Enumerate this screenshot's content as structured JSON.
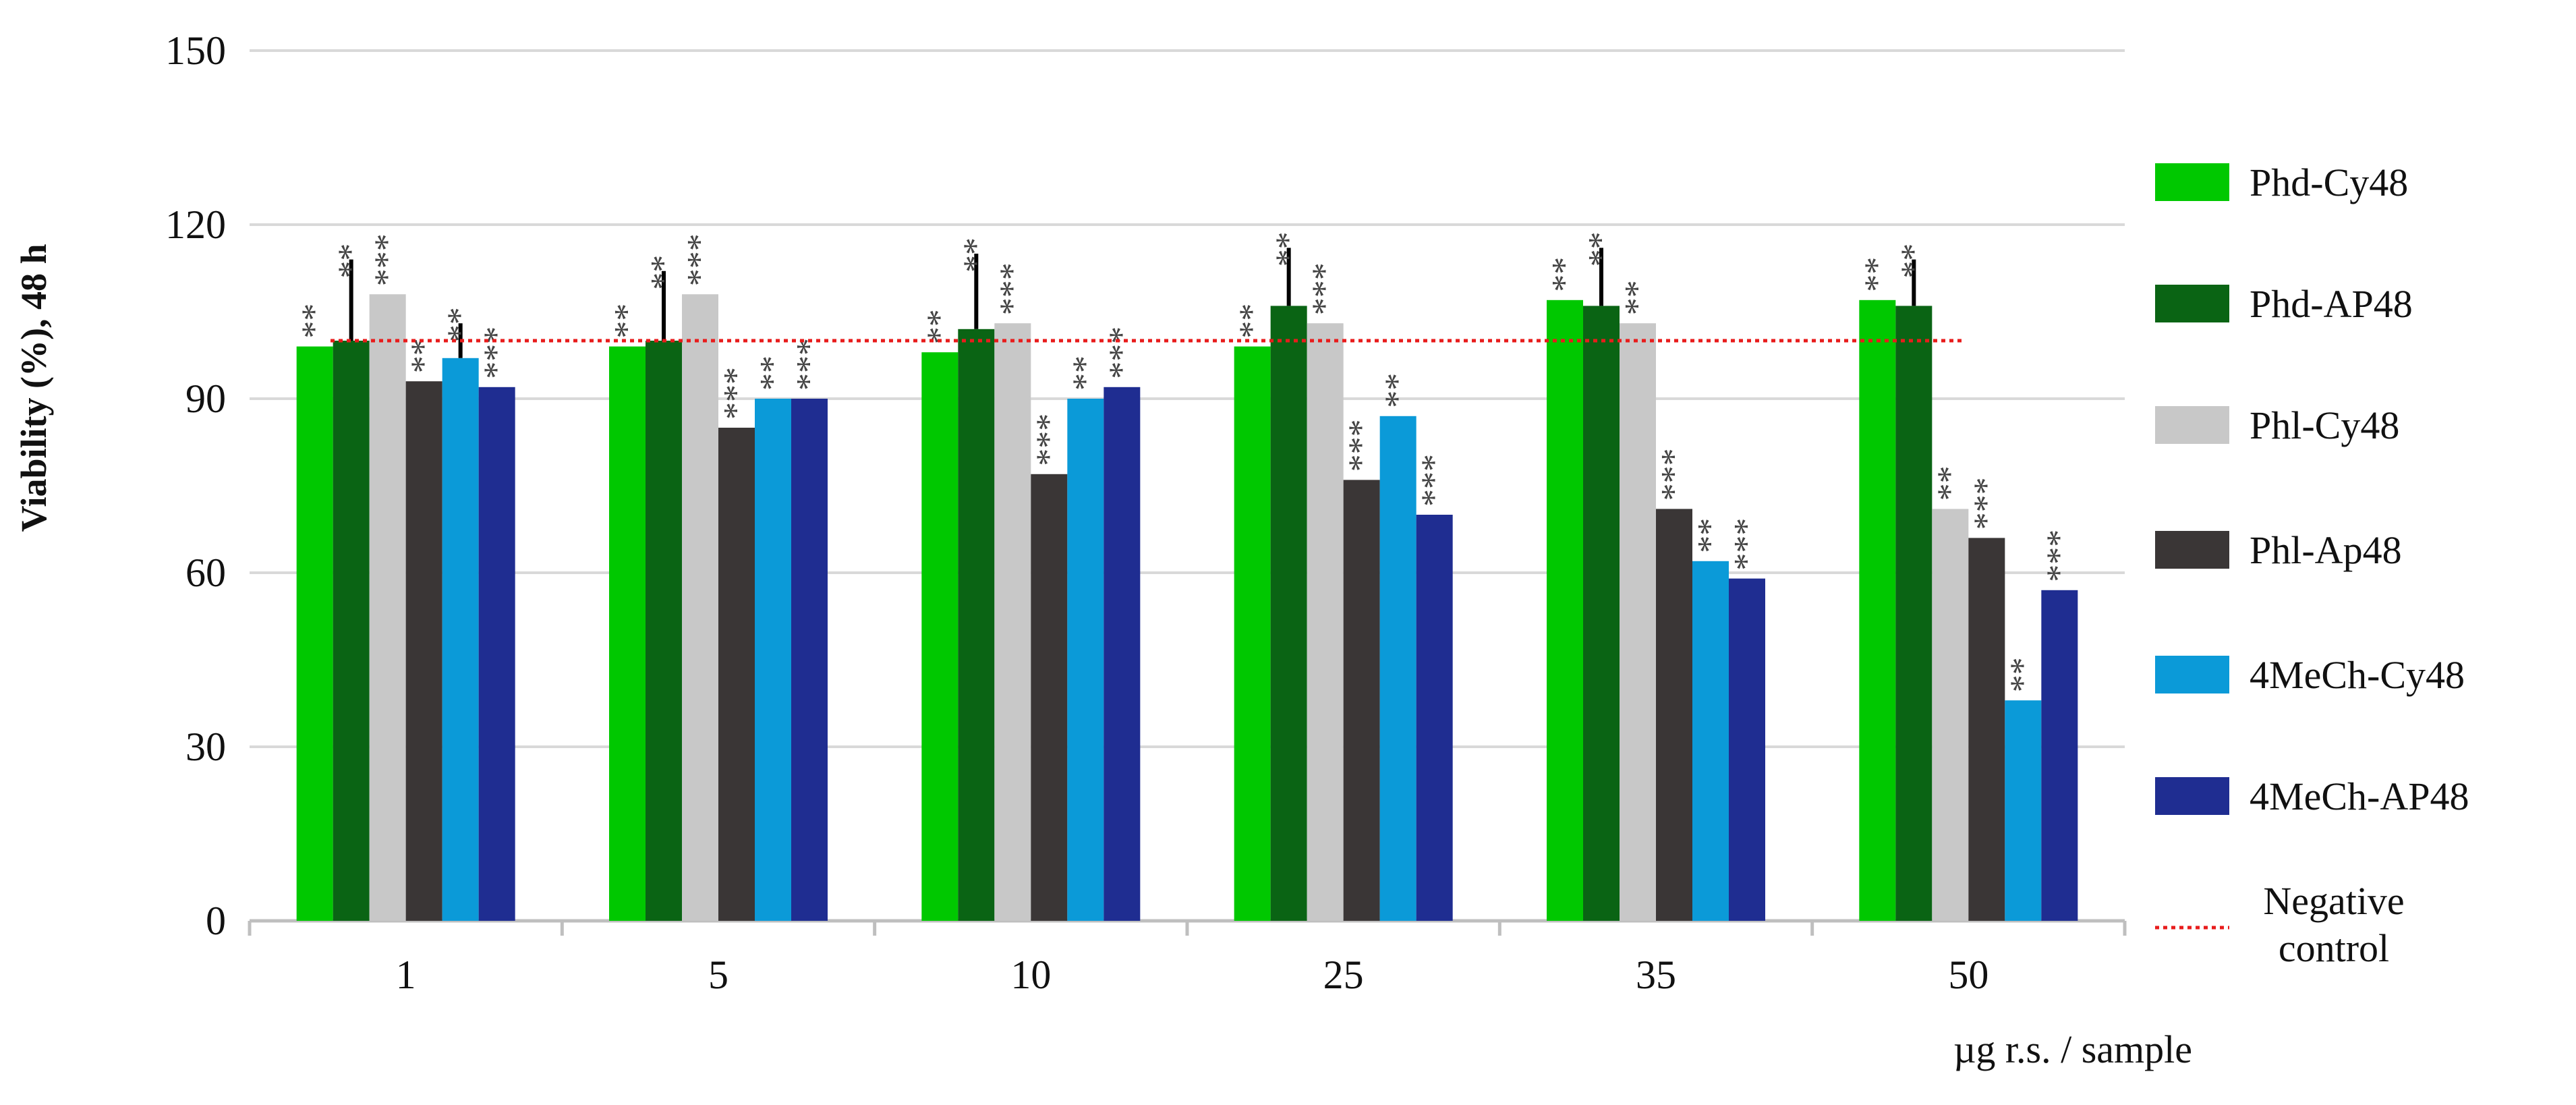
{
  "chart_data": {
    "type": "bar",
    "categories": [
      "1",
      "5",
      "10",
      "25",
      "35",
      "50"
    ],
    "series": [
      {
        "name": "Phd-Cy48",
        "color": "#00c800",
        "values": [
          99,
          99,
          98,
          99,
          107,
          107
        ],
        "error": [
          null,
          null,
          null,
          null,
          null,
          null
        ],
        "significance": [
          "**",
          "**",
          "**",
          "**",
          "**",
          "**"
        ]
      },
      {
        "name": "Phd-AP48",
        "color": "#0a6414",
        "values": [
          100,
          100,
          102,
          106,
          106,
          106
        ],
        "error": [
          14,
          12,
          13,
          10,
          10,
          8
        ],
        "significance": [
          "**",
          "**",
          "**",
          "**",
          "**",
          "**"
        ]
      },
      {
        "name": "Phl-Cy48",
        "color": "#c8c8c8",
        "values": [
          108,
          108,
          103,
          103,
          103,
          71
        ],
        "error": [
          null,
          null,
          null,
          null,
          null,
          null
        ],
        "significance": [
          "***",
          "***",
          "***",
          "***",
          "**",
          "**"
        ]
      },
      {
        "name": "Phl-Ap48",
        "color": "#3a3636",
        "values": [
          93,
          85,
          77,
          76,
          71,
          66
        ],
        "error": [
          null,
          null,
          null,
          null,
          null,
          null
        ],
        "significance": [
          "**",
          "***",
          "***",
          "***",
          "***",
          "***"
        ]
      },
      {
        "name": "4MeCh-Cy48",
        "color": "#0b9ad8",
        "values": [
          97,
          90,
          90,
          87,
          62,
          38
        ],
        "error": [
          6,
          null,
          null,
          null,
          null,
          null
        ],
        "significance": [
          "**",
          "**",
          "**",
          "**",
          "**",
          "**"
        ]
      },
      {
        "name": "4MeCh-AP48",
        "color": "#1f2d91",
        "values": [
          92,
          90,
          92,
          70,
          59,
          57
        ],
        "error": [
          null,
          null,
          null,
          null,
          null,
          null
        ],
        "significance": [
          "***",
          "***",
          "***",
          "***",
          "***",
          "***"
        ]
      }
    ],
    "reference_line": {
      "name": "Negative control",
      "value": 100,
      "color": "#e81c1c",
      "style": "dotted"
    },
    "ylabel": "Viability (%), 48 h",
    "xlabel": "µg r.s. / sample",
    "ylim": [
      0,
      150
    ],
    "yticks": [
      0,
      30,
      60,
      90,
      120,
      150
    ],
    "grid": true,
    "legend_position": "right"
  }
}
